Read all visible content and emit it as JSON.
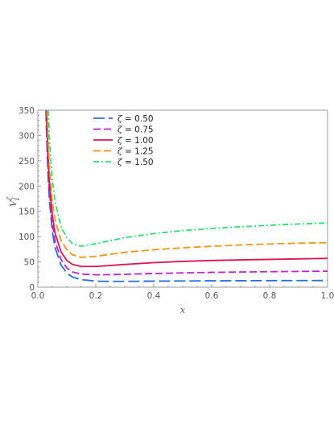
{
  "chart_data": {
    "type": "line",
    "xlabel": "x",
    "ylabel": {
      "base": "V",
      "sub": "1",
      "sup": "ζ"
    },
    "xlim": [
      0,
      1
    ],
    "ylim": [
      0,
      350
    ],
    "xticks": [
      "0.0",
      "0.2",
      "0.4",
      "0.6",
      "0.8",
      "1.0"
    ],
    "yticks": [
      "0",
      "50",
      "100",
      "150",
      "200",
      "250",
      "300",
      "350"
    ],
    "grid": false,
    "legend_position": "top-left",
    "series": [
      {
        "name": "0.50",
        "color": "#1f6fe6",
        "dash": "long-dash",
        "x": [
          0.028,
          0.03,
          0.035,
          0.04,
          0.05,
          0.06,
          0.08,
          0.1,
          0.12,
          0.15,
          0.2,
          0.25,
          0.3,
          0.4,
          0.5,
          0.6,
          0.7,
          0.8,
          0.9,
          1.0
        ],
        "y": [
          350,
          305,
          225,
          172,
          110,
          77,
          44,
          28,
          20,
          15,
          12,
          11.5,
          11.5,
          12,
          12.3,
          12.6,
          12.8,
          13,
          13.1,
          13.2
        ]
      },
      {
        "name": "0.75",
        "color": "#c21fd6",
        "dash": "dash",
        "x": [
          0.029,
          0.03,
          0.035,
          0.04,
          0.05,
          0.06,
          0.08,
          0.1,
          0.12,
          0.15,
          0.2,
          0.25,
          0.3,
          0.4,
          0.5,
          0.6,
          0.7,
          0.8,
          0.9,
          1.0
        ],
        "y": [
          350,
          330,
          245,
          190,
          125,
          90,
          55,
          38,
          30,
          26,
          24.5,
          24.8,
          25.5,
          27,
          28.3,
          29.3,
          30,
          30.7,
          31.2,
          31.6
        ]
      },
      {
        "name": "1.00",
        "color": "#e0144c",
        "dash": "solid",
        "x": [
          0.03,
          0.035,
          0.04,
          0.05,
          0.06,
          0.08,
          0.1,
          0.12,
          0.15,
          0.2,
          0.25,
          0.3,
          0.4,
          0.5,
          0.6,
          0.7,
          0.8,
          0.9,
          1.0
        ],
        "y": [
          350,
          265,
          210,
          142,
          106,
          70,
          53,
          45,
          41,
          41,
          43,
          45,
          48.5,
          51,
          52.8,
          54,
          55,
          56,
          57
        ]
      },
      {
        "name": "1.25",
        "color": "#f2950f",
        "dash": "dash",
        "x": [
          0.032,
          0.035,
          0.04,
          0.05,
          0.06,
          0.08,
          0.1,
          0.12,
          0.15,
          0.2,
          0.25,
          0.3,
          0.4,
          0.5,
          0.6,
          0.7,
          0.8,
          0.9,
          1.0
        ],
        "y": [
          350,
          300,
          240,
          170,
          132,
          93,
          74,
          64,
          59,
          61,
          65,
          69,
          74,
          78,
          81,
          83.5,
          85.5,
          87,
          88
        ]
      },
      {
        "name": "1.50",
        "color": "#27e36f",
        "dash": "dash-dot",
        "x": [
          0.036,
          0.04,
          0.05,
          0.06,
          0.08,
          0.1,
          0.12,
          0.15,
          0.2,
          0.25,
          0.3,
          0.4,
          0.5,
          0.6,
          0.7,
          0.8,
          0.9,
          1.0
        ],
        "y": [
          350,
          292,
          212,
          168,
          120,
          98,
          86,
          81,
          86,
          92,
          98,
          106,
          112,
          116,
          119.5,
          122.5,
          125,
          127
        ]
      }
    ]
  }
}
